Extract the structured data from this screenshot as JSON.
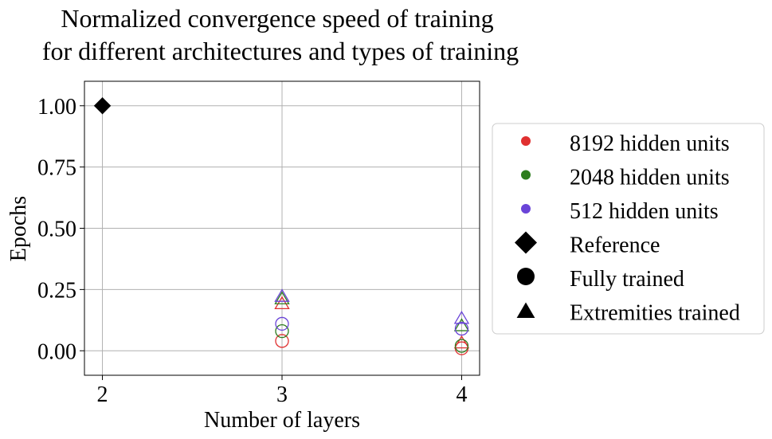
{
  "chart_data": {
    "type": "scatter",
    "title": [
      "Normalized convergence speed of training",
      "for different architectures and types of training"
    ],
    "xlabel": "Number of layers",
    "ylabel": "Epochs",
    "xlim": [
      1.9,
      4.1
    ],
    "ylim": [
      -0.1,
      1.1
    ],
    "xticks": [
      2,
      3,
      4
    ],
    "xtick_labels": [
      "2",
      "3",
      "4"
    ],
    "yticks": [
      0.0,
      0.25,
      0.5,
      0.75,
      1.0
    ],
    "ytick_labels": [
      "0.00",
      "0.25",
      "0.50",
      "0.75",
      "1.00"
    ],
    "grid": true,
    "legend": {
      "placement": "right-outside",
      "entries": [
        {
          "label": "8192 hidden units",
          "marker": "dot",
          "color": "#e03030"
        },
        {
          "label": "2048 hidden units",
          "marker": "dot",
          "color": "#2e7d1e"
        },
        {
          "label": "512 hidden units",
          "marker": "dot",
          "color": "#6a44d8"
        },
        {
          "label": "Reference",
          "marker": "diamond",
          "color": "#000000"
        },
        {
          "label": "Fully trained",
          "marker": "circle",
          "color": "#000000"
        },
        {
          "label": "Extremities trained",
          "marker": "triangle",
          "color": "#000000"
        }
      ]
    },
    "reference": [
      {
        "x": 2,
        "y": 1.0
      }
    ],
    "series": [
      {
        "name": "8192 hidden units",
        "color": "#e03030",
        "fully_trained": [
          {
            "x": 3,
            "y": 0.04
          },
          {
            "x": 4,
            "y": 0.01
          }
        ],
        "extremities_trained": [
          {
            "x": 3,
            "y": 0.19
          },
          {
            "x": 4,
            "y": 0.03
          }
        ]
      },
      {
        "name": "2048 hidden units",
        "color": "#2e7d1e",
        "fully_trained": [
          {
            "x": 3,
            "y": 0.08
          },
          {
            "x": 4,
            "y": 0.02
          }
        ],
        "extremities_trained": [
          {
            "x": 3,
            "y": 0.21
          },
          {
            "x": 4,
            "y": 0.1
          }
        ]
      },
      {
        "name": "512 hidden units",
        "color": "#6a44d8",
        "fully_trained": [
          {
            "x": 3,
            "y": 0.11
          },
          {
            "x": 4,
            "y": 0.09
          }
        ],
        "extremities_trained": [
          {
            "x": 3,
            "y": 0.22
          },
          {
            "x": 4,
            "y": 0.13
          }
        ]
      }
    ]
  }
}
